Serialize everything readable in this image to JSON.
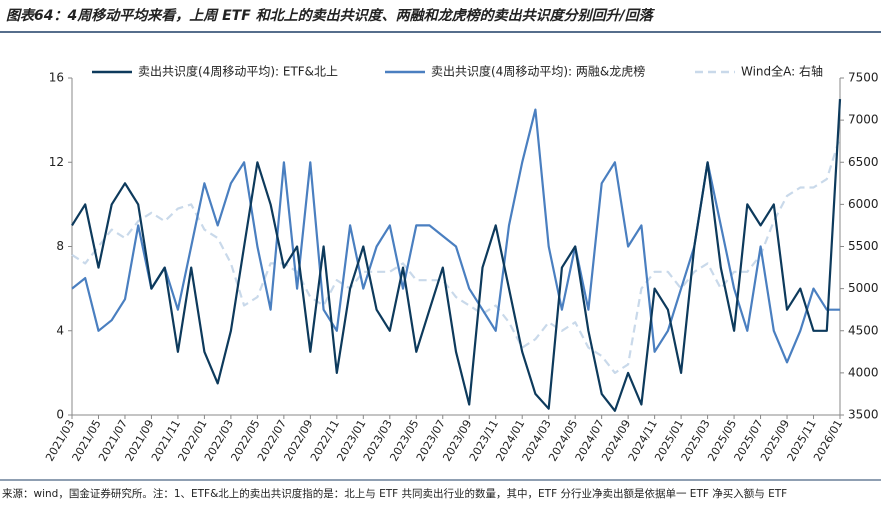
{
  "chart_data": {
    "type": "line",
    "title": "图表64：4周移动平均来看，上周 ETF 和北上的卖出共识度、两融和龙虎榜的卖出共识度分别回升/回落",
    "source": "来源：wind，国金证券研究所。注：1、ETF&北上的卖出共识度指的是：北上与 ETF 共同卖出行业的数量，其中，ETF 分行业净卖出额是依据单一 ETF 净买入额与 ETF",
    "categories": [
      "2021/03",
      null,
      "2021/05",
      null,
      "2021/07",
      null,
      "2021/09",
      null,
      "2021/11",
      null,
      "2022/01",
      null,
      "2022/03",
      null,
      "2022/05",
      null,
      "2022/07",
      null,
      "2022/09",
      null,
      "2022/11",
      null,
      "2023/01",
      null,
      "2023/03",
      null,
      "2023/05",
      null,
      "2023/07",
      null,
      "2023/09",
      null,
      "2023/11",
      null,
      "2024/01",
      null,
      "2024/03",
      null,
      "2024/05",
      null,
      "2024/07",
      null,
      "2024/09",
      null,
      "2024/11",
      null,
      "2025/01",
      null,
      "2025/03",
      null,
      "2025/05",
      null,
      "2025/07",
      null,
      "2025/09",
      null,
      "2025/11",
      null,
      "2026/01"
    ],
    "series": [
      {
        "name": "卖出共识度(4周移动平均): ETF&北上",
        "color": "#0d3a5c",
        "axis": "y",
        "values": [
          9,
          10,
          7,
          10,
          11,
          10,
          6,
          7,
          3,
          7,
          3,
          1.5,
          4,
          8,
          12,
          10,
          7,
          8,
          3,
          8,
          2,
          6,
          8,
          5,
          4,
          7,
          3,
          5,
          7,
          3,
          0.5,
          7,
          9,
          6,
          3,
          1,
          0.3,
          7,
          8,
          4,
          1,
          0.2,
          2,
          0.5,
          6,
          5,
          2,
          8,
          12,
          7,
          4,
          10,
          9,
          10,
          5,
          6,
          4,
          4,
          15
        ]
      },
      {
        "name": "卖出共识度(4周移动平均): 两融&龙虎榜",
        "color": "#4a7fc0",
        "axis": "y",
        "values": [
          6,
          6.5,
          4,
          4.5,
          5.5,
          9,
          6,
          7,
          5,
          8,
          11,
          9,
          11,
          12,
          8,
          5,
          12,
          6,
          12,
          5,
          4,
          9,
          6,
          8,
          9,
          6,
          9,
          9,
          8.5,
          8,
          6,
          5,
          4,
          9,
          12,
          14.5,
          8,
          5,
          8,
          5,
          11,
          12,
          8,
          9,
          3,
          4,
          6,
          8,
          12,
          9,
          6,
          4,
          8,
          4,
          2.5,
          4,
          6,
          5,
          5
        ]
      },
      {
        "name": "Wind全A: 右轴",
        "color": "#c9d9ea",
        "axis": "y2",
        "dashed": true,
        "values": [
          5400,
          5300,
          5500,
          5700,
          5600,
          5800,
          5900,
          5800,
          5950,
          6000,
          5700,
          5600,
          5300,
          4800,
          4900,
          5300,
          5300,
          5200,
          4900,
          4800,
          5100,
          5000,
          5200,
          5200,
          5200,
          5300,
          5100,
          5100,
          5100,
          4900,
          4800,
          4700,
          4800,
          4600,
          4300,
          4400,
          4600,
          4500,
          4600,
          4300,
          4200,
          4000,
          4100,
          5000,
          5200,
          5200,
          5000,
          5200,
          5300,
          5000,
          5200,
          5200,
          5400,
          5800,
          6100,
          6200,
          6200,
          6300,
          6800
        ]
      }
    ],
    "ylim": [
      0,
      16
    ],
    "yticks": [
      0,
      4,
      8,
      12,
      16
    ],
    "y2lim": [
      3500,
      7500
    ],
    "y2ticks": [
      3500,
      4000,
      4500,
      5000,
      5500,
      6000,
      6500,
      7000,
      7500
    ],
    "legend": "top"
  }
}
